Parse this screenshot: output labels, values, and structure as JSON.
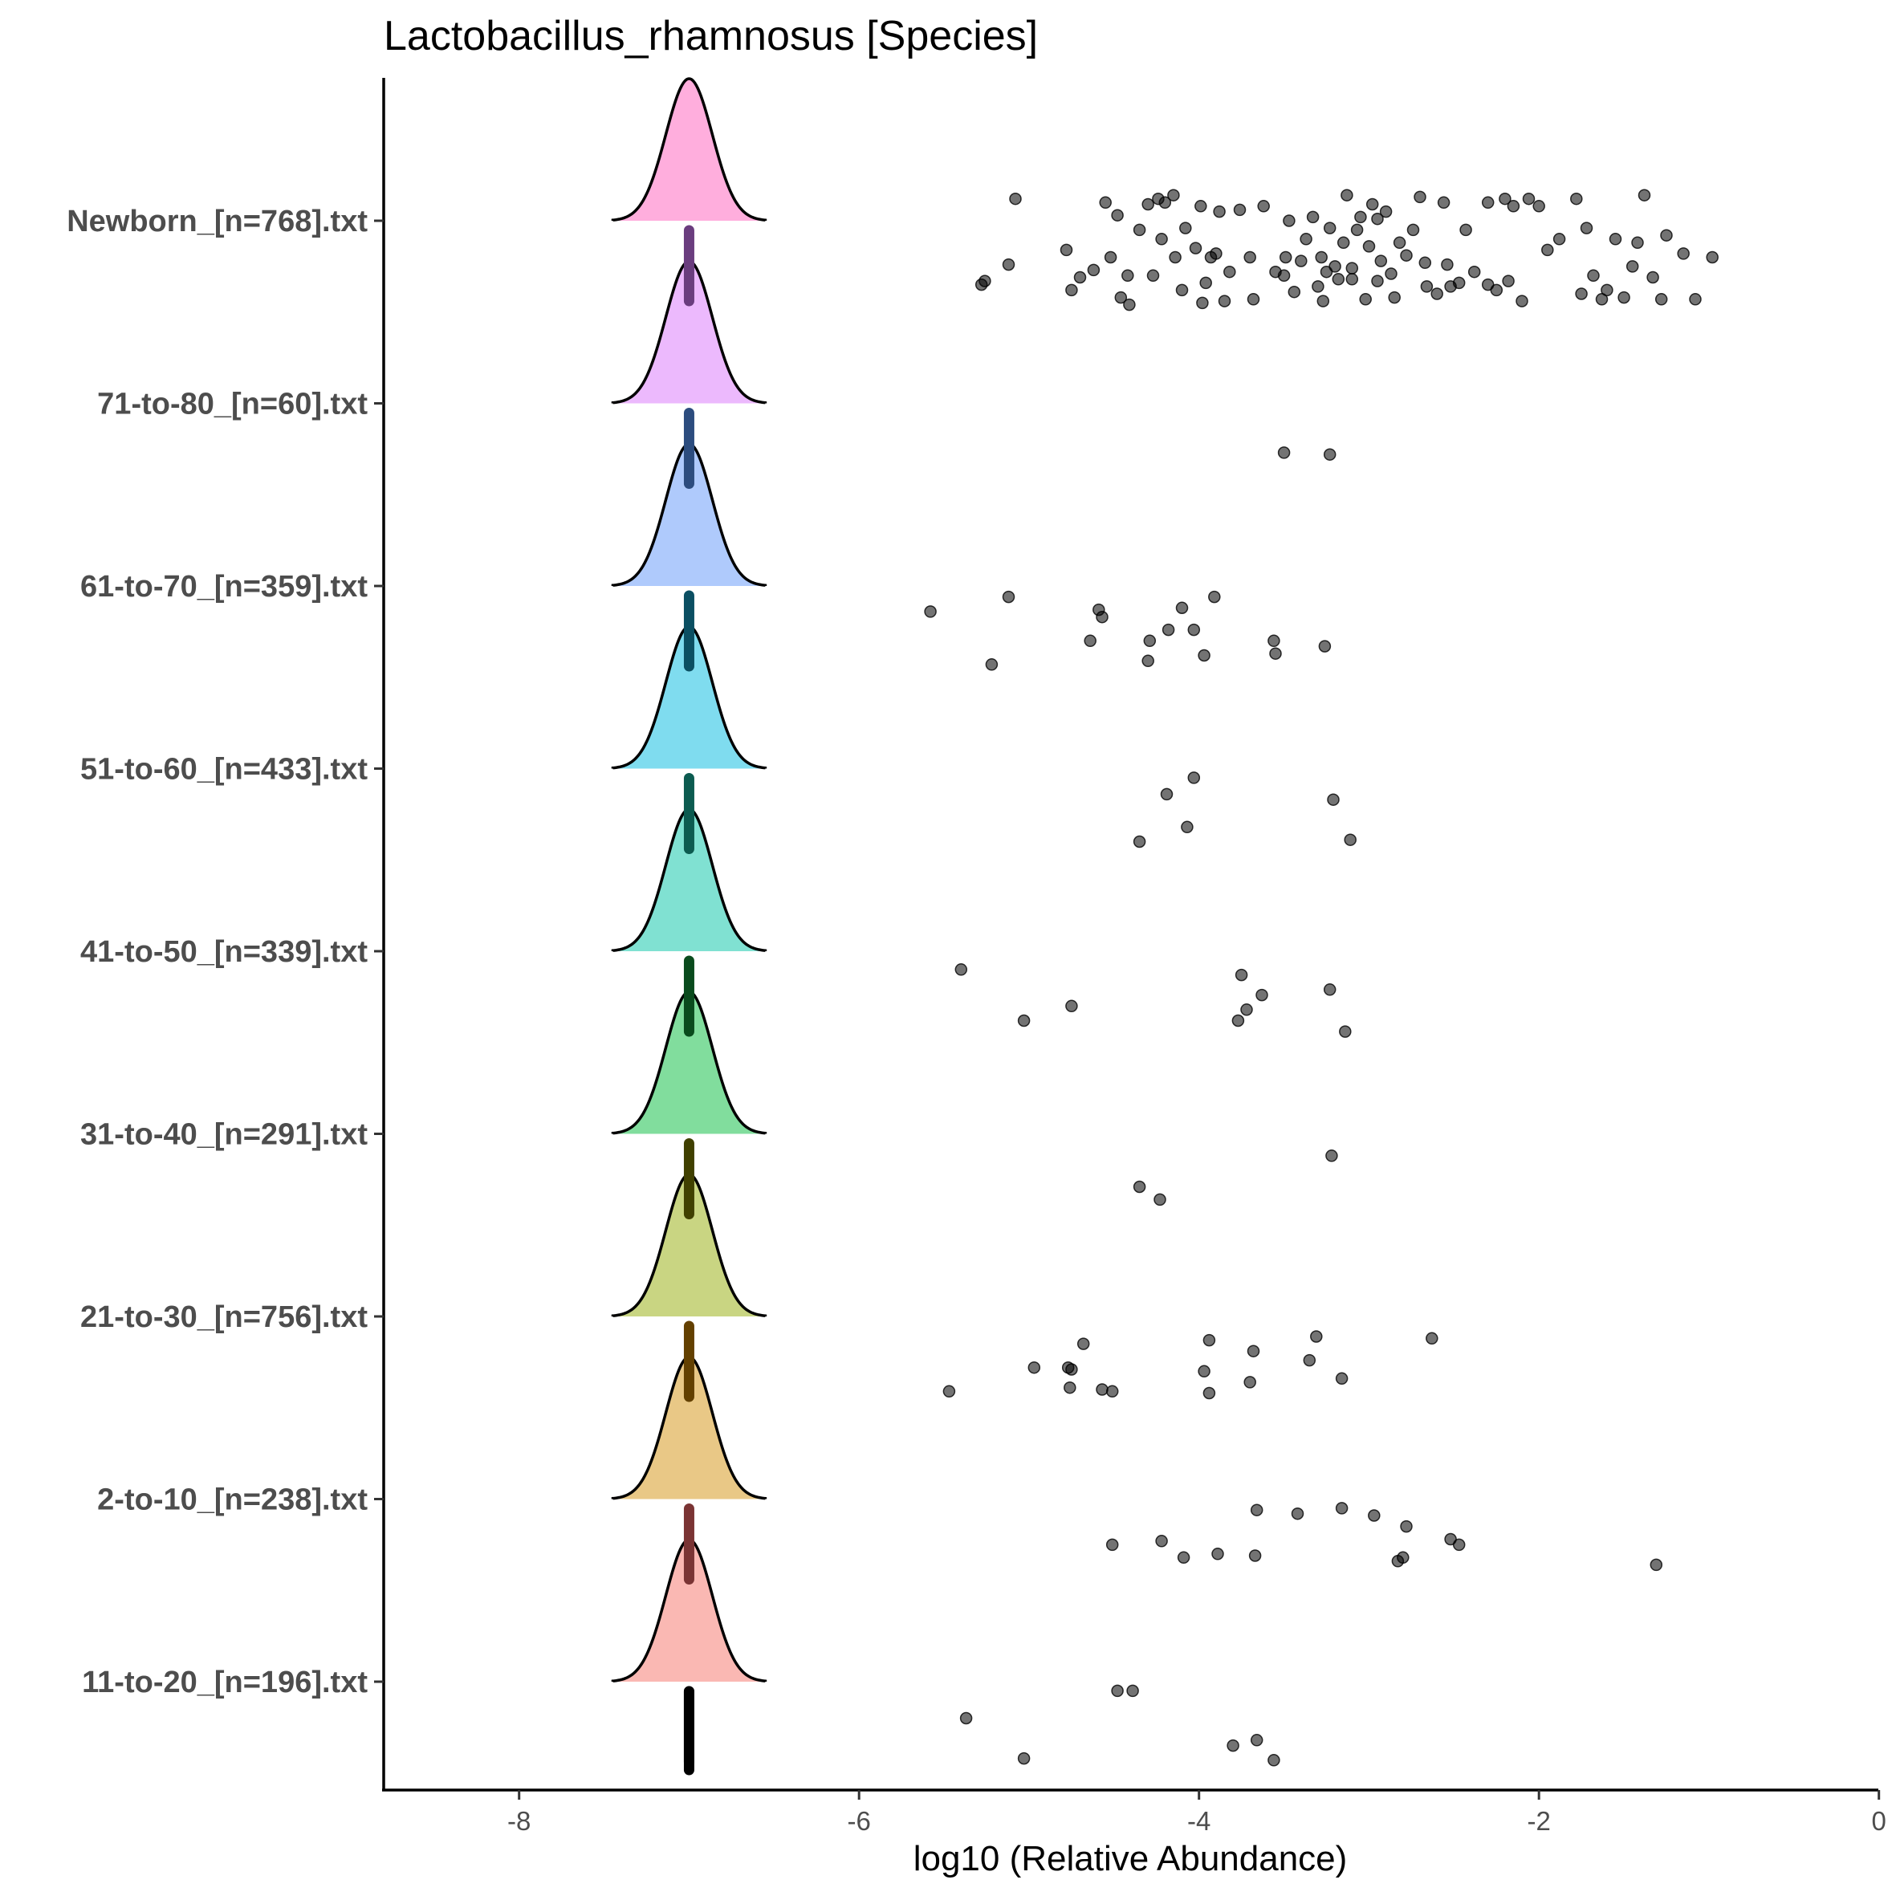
{
  "chart_data": {
    "type": "scatter",
    "title": "Lactobacillus_rhamnosus [Species]",
    "xlabel": "log10 (Relative Abundance)",
    "ylabel": "",
    "xlim": [
      -8.4,
      0.4
    ],
    "xticks": [
      -8,
      -6,
      -4,
      -2,
      0
    ],
    "grid": false,
    "legend": "none",
    "point_color": "#000000",
    "categories": [
      "Newborn_[n=768].txt",
      "71-to-80_[n=60].txt",
      "61-to-70_[n=359].txt",
      "51-to-60_[n=433].txt",
      "41-to-50_[n=339].txt",
      "31-to-40_[n=291].txt",
      "21-to-30_[n=756].txt",
      "2-to-10_[n=238].txt",
      "11-to-20_[n=196].txt"
    ],
    "density_mode": -7.0,
    "density_colors": [
      "#ffaedd",
      "#ecb9fd",
      "#afcafc",
      "#7fdcef",
      "#80e1d2",
      "#81dd9d",
      "#c9d582",
      "#e9c886",
      "#fab8b3"
    ],
    "median_bar_colors": [
      "#6a3d7e",
      "#2c4c7e",
      "#0b4f62",
      "#0c5b50",
      "#0a4b1d",
      "#404000",
      "#634000",
      "#7a3434",
      "#000000"
    ],
    "series": [
      {
        "category": "Newborn_[n=768].txt",
        "x": [
          -5.08,
          -5.12,
          -5.26,
          -5.28,
          -4.78,
          -4.7,
          -4.62,
          -4.55,
          -4.52,
          -4.48,
          -4.46,
          -4.42,
          -4.41,
          -4.3,
          -4.27,
          -4.24,
          -4.22,
          -4.2,
          -4.15,
          -4.14,
          -4.1,
          -4.08,
          -4.02,
          -3.99,
          -3.98,
          -3.96,
          -3.93,
          -3.9,
          -3.88,
          -3.82,
          -3.76,
          -3.7,
          -3.68,
          -3.62,
          -3.5,
          -3.49,
          -3.47,
          -3.44,
          -3.4,
          -3.37,
          -3.33,
          -3.3,
          -3.28,
          -3.27,
          -3.25,
          -3.23,
          -3.2,
          -3.18,
          -3.15,
          -3.13,
          -3.1,
          -3.07,
          -3.05,
          -3.02,
          -3.0,
          -2.98,
          -2.95,
          -2.93,
          -2.9,
          -2.87,
          -2.85,
          -2.82,
          -2.78,
          -2.74,
          -2.7,
          -2.66,
          -2.6,
          -2.56,
          -2.54,
          -2.52,
          -2.47,
          -2.43,
          -2.38,
          -2.3,
          -2.25,
          -2.2,
          -2.18,
          -2.15,
          -2.1,
          -2.06,
          -2.0,
          -1.95,
          -1.88,
          -1.78,
          -1.72,
          -1.68,
          -1.6,
          -1.55,
          -1.5,
          -1.45,
          -1.42,
          -1.38,
          -1.33,
          -1.28,
          -1.25,
          -1.15,
          -1.08,
          -0.98,
          -4.75,
          -4.35,
          -3.85,
          -3.55,
          -3.1,
          -2.95,
          -2.67,
          -2.3,
          -1.75,
          -1.63
        ],
        "y": [
          0.12,
          -0.24,
          -0.33,
          -0.35,
          -0.16,
          -0.31,
          -0.27,
          0.1,
          -0.2,
          0.03,
          -0.42,
          -0.3,
          -0.46,
          0.09,
          -0.3,
          0.12,
          -0.1,
          0.1,
          0.14,
          -0.2,
          -0.38,
          -0.04,
          -0.15,
          0.08,
          -0.45,
          -0.34,
          -0.2,
          -0.18,
          0.05,
          -0.28,
          0.06,
          -0.2,
          -0.43,
          0.08,
          -0.3,
          -0.2,
          0.0,
          -0.39,
          -0.22,
          -0.1,
          0.02,
          -0.36,
          -0.2,
          -0.44,
          -0.28,
          -0.04,
          -0.25,
          -0.32,
          -0.12,
          0.14,
          -0.26,
          -0.05,
          0.02,
          -0.43,
          -0.14,
          0.09,
          -0.33,
          -0.22,
          0.05,
          -0.29,
          -0.42,
          -0.12,
          -0.19,
          -0.05,
          0.13,
          -0.36,
          -0.4,
          0.1,
          -0.24,
          -0.36,
          -0.34,
          -0.05,
          -0.28,
          0.1,
          -0.38,
          0.12,
          -0.33,
          0.08,
          -0.44,
          0.12,
          0.08,
          -0.16,
          -0.1,
          0.12,
          -0.04,
          -0.3,
          -0.38,
          -0.1,
          -0.42,
          -0.25,
          -0.12,
          0.14,
          -0.31,
          -0.43,
          -0.08,
          -0.18,
          -0.43,
          -0.2,
          -0.38,
          -0.05,
          -0.44,
          -0.28,
          -0.32,
          0.01,
          -0.23,
          -0.35,
          -0.4,
          -0.43
        ]
      },
      {
        "category": "71-to-80_[n=60].txt",
        "x": [
          -3.5,
          -3.23
        ],
        "y": [
          -0.27,
          -0.28
        ]
      },
      {
        "category": "61-to-70_[n=359].txt",
        "x": [
          -5.58,
          -5.12,
          -4.59,
          -4.57,
          -4.64,
          -4.29,
          -4.3,
          -4.18,
          -4.1,
          -4.03,
          -3.97,
          -3.91,
          -3.56,
          -3.55,
          -3.26,
          -5.22
        ],
        "y": [
          -0.14,
          -0.06,
          -0.13,
          -0.17,
          -0.3,
          -0.3,
          -0.41,
          -0.24,
          -0.12,
          -0.24,
          -0.38,
          -0.06,
          -0.3,
          -0.37,
          -0.33,
          -0.43
        ]
      },
      {
        "category": "51-to-60_[n=433].txt",
        "x": [
          -4.03,
          -4.19,
          -4.07,
          -4.35,
          -3.21,
          -3.11
        ],
        "y": [
          -0.05,
          -0.14,
          -0.32,
          -0.4,
          -0.17,
          -0.39
        ]
      },
      {
        "category": "41-to-50_[n=339].txt",
        "x": [
          -5.4,
          -4.75,
          -5.03,
          -3.75,
          -3.72,
          -3.63,
          -3.77,
          -3.23,
          -3.14
        ],
        "y": [
          -0.1,
          -0.3,
          -0.38,
          -0.13,
          -0.32,
          -0.24,
          -0.38,
          -0.21,
          -0.44
        ]
      },
      {
        "category": "31-to-40_[n=291].txt",
        "x": [
          -3.22,
          -4.35,
          -4.23
        ],
        "y": [
          -0.12,
          -0.29,
          -0.36
        ]
      },
      {
        "category": "21-to-30_[n=756].txt",
        "x": [
          -4.68,
          -3.94,
          -3.31,
          -2.63,
          -3.68,
          -3.35,
          -4.97,
          -4.77,
          -4.75,
          -3.97,
          -3.7,
          -3.16,
          -5.47,
          -4.76,
          -4.57,
          -4.51,
          -3.94
        ],
        "y": [
          -0.15,
          -0.13,
          -0.11,
          -0.12,
          -0.19,
          -0.24,
          -0.28,
          -0.28,
          -0.29,
          -0.3,
          -0.36,
          -0.34,
          -0.41,
          -0.39,
          -0.4,
          -0.41,
          -0.42
        ]
      },
      {
        "category": "2-to-10_[n=238].txt",
        "x": [
          -3.66,
          -3.42,
          -3.16,
          -2.97,
          -2.78,
          -2.52,
          -2.47,
          -4.51,
          -4.22,
          -3.89,
          -4.09,
          -3.67,
          -2.8,
          -2.83,
          -1.31
        ],
        "y": [
          -0.06,
          -0.08,
          -0.05,
          -0.09,
          -0.15,
          -0.22,
          -0.25,
          -0.25,
          -0.23,
          -0.3,
          -0.32,
          -0.31,
          -0.32,
          -0.34,
          -0.36
        ]
      },
      {
        "category": "11-to-20_[n=196].txt",
        "x": [
          -4.48,
          -4.39,
          -5.37,
          -3.66,
          -3.8,
          -3.56,
          -5.03
        ],
        "y": [
          -0.05,
          -0.05,
          -0.2,
          -0.32,
          -0.35,
          -0.43,
          -0.42
        ]
      }
    ]
  }
}
